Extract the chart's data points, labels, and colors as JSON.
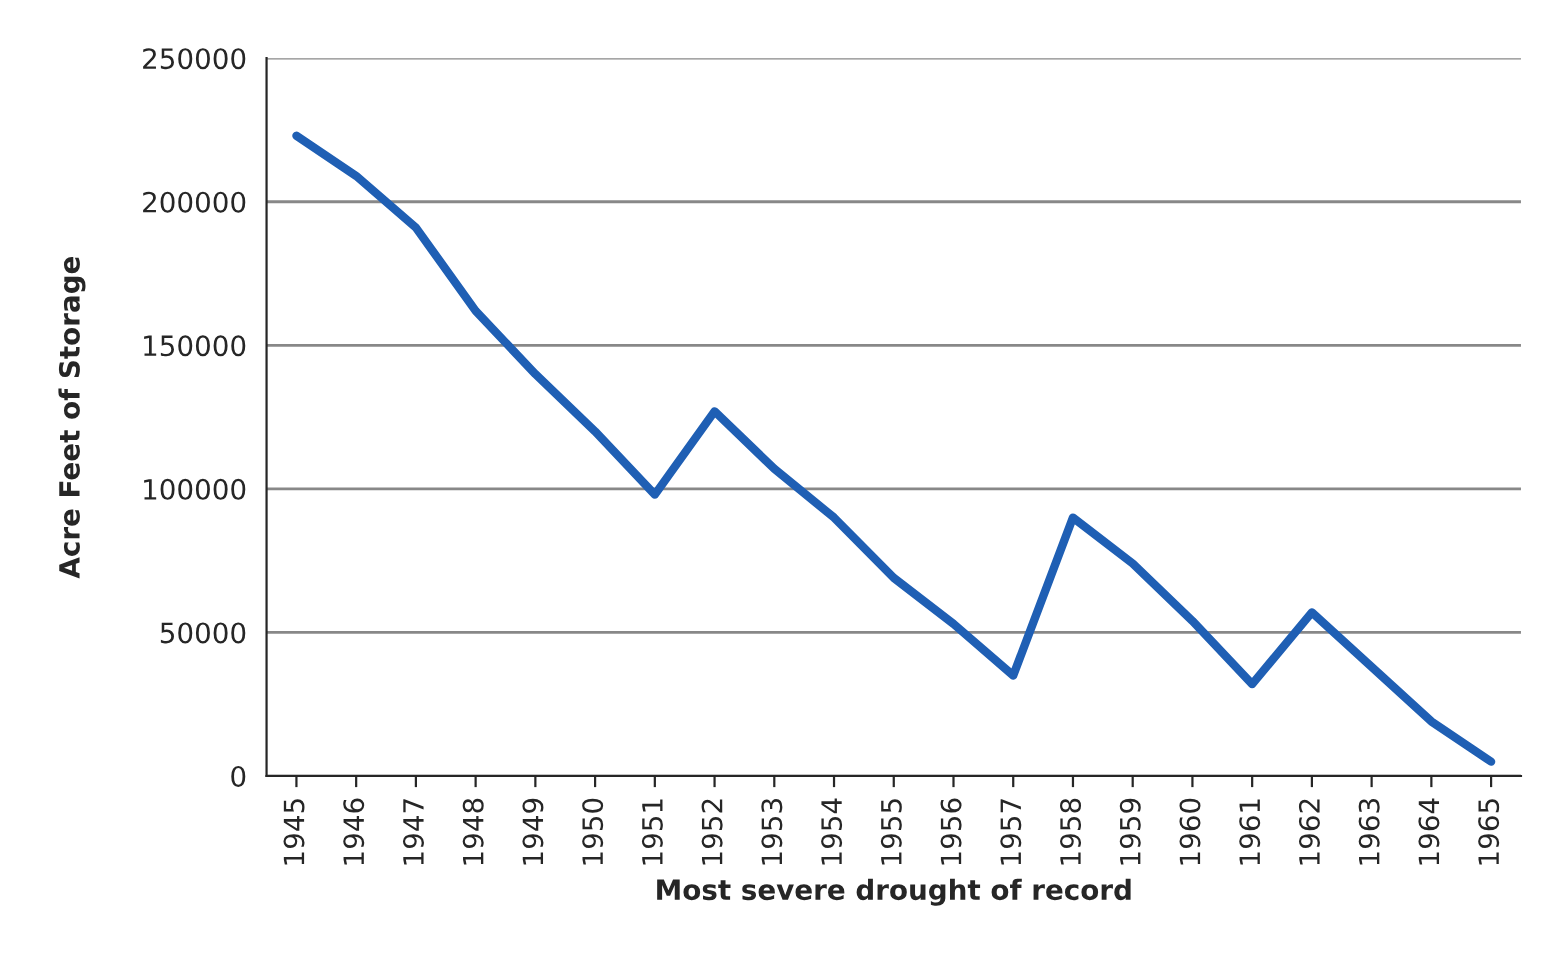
{
  "chart_data": {
    "type": "line",
    "xlabel": "Most severe drought of record",
    "ylabel": "Acre Feet of Storage",
    "categories": [
      "1945",
      "1946",
      "1947",
      "1948",
      "1949",
      "1950",
      "1951",
      "1952",
      "1953",
      "1954",
      "1955",
      "1956",
      "1957",
      "1958",
      "1959",
      "1960",
      "1961",
      "1962",
      "1963",
      "1964",
      "1965"
    ],
    "series": [
      {
        "color": "#1f5fb4",
        "values": [
          223000,
          209000,
          191000,
          162000,
          140000,
          120000,
          98000,
          127000,
          107000,
          90000,
          69000,
          53000,
          35000,
          90000,
          74000,
          54000,
          32000,
          57000,
          38000,
          19000,
          5000
        ]
      }
    ],
    "ylim": [
      0,
      250000
    ],
    "yticks": [
      0,
      50000,
      100000,
      150000,
      200000,
      250000
    ],
    "grid": "y",
    "marker": "none",
    "line_style": "solid",
    "legend": false
  }
}
